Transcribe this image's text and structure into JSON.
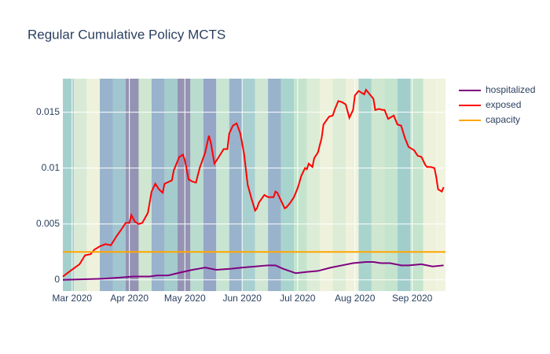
{
  "chart_data": {
    "type": "line",
    "title": "Regular Cumulative Policy MCTS",
    "xlim": [
      0,
      207
    ],
    "xticks": [
      {
        "value": 5,
        "label": "Mar 2020"
      },
      {
        "value": 36,
        "label": "Apr 2020"
      },
      {
        "value": 66,
        "label": "May 2020"
      },
      {
        "value": 97,
        "label": "Jun 2020"
      },
      {
        "value": 127,
        "label": "Jul 2020"
      },
      {
        "value": 158,
        "label": "Aug 2020"
      },
      {
        "value": 189,
        "label": "Sep 2020"
      }
    ],
    "ylim": [
      -0.001,
      0.018
    ],
    "yticks": [
      0,
      0.005,
      0.01,
      0.015
    ],
    "grid": true,
    "band_edges": [
      0,
      6,
      13,
      20,
      27,
      34,
      41,
      48,
      55,
      62,
      69,
      76,
      83,
      90,
      97,
      104,
      111,
      118,
      125,
      132,
      139,
      146,
      153,
      160,
      167,
      174,
      181,
      188,
      195,
      202,
      207
    ],
    "band_colors": [
      "#a3d0cd",
      "#d8ead6",
      "#eef2dc",
      "#98b3cb",
      "#a2c6d0",
      "#9593b3",
      "#cfe6d0",
      "#98b3cb",
      "#a4cccd",
      "#9593b3",
      "#b9dccf",
      "#96a6c6",
      "#c8e4d2",
      "#98b3cb",
      "#a8d0d0",
      "#cfe6d4",
      "#98b3cb",
      "#a8d4cd",
      "#c4e4cd",
      "#dcecd6",
      "#eef2dc",
      "#dcecd6",
      "#eef2dc",
      "#a8d4cd",
      "#cfe6d0",
      "#c4e4cd",
      "#a2cdcd",
      "#c4e4cd",
      "#eef2dc",
      "#f0f4df"
    ],
    "series": [
      {
        "name": "hospitalized",
        "color": "#800080",
        "x": [
          0,
          21,
          30,
          38,
          47,
          51,
          57,
          62,
          70,
          77,
          83,
          91,
          97,
          104,
          111,
          115,
          119,
          126,
          131,
          138,
          145,
          151,
          157,
          164,
          168,
          172,
          177,
          183,
          187,
          194,
          200,
          206
        ],
        "values": [
          0.0,
          0.0001,
          0.0002,
          0.0003,
          0.0003,
          0.0004,
          0.0004,
          0.0006,
          0.0009,
          0.0011,
          0.0009,
          0.001,
          0.0011,
          0.0012,
          0.0013,
          0.0013,
          0.001,
          0.0006,
          0.0007,
          0.0008,
          0.0011,
          0.0013,
          0.0015,
          0.0016,
          0.0016,
          0.0015,
          0.0015,
          0.0013,
          0.0013,
          0.0014,
          0.0012,
          0.0013
        ]
      },
      {
        "name": "exposed",
        "color": "#ff0000",
        "x": [
          0,
          4,
          9,
          12,
          15,
          17,
          18,
          20,
          23,
          26,
          29,
          32,
          34,
          36,
          37,
          39,
          41,
          43,
          46,
          48,
          50,
          52,
          54,
          55,
          59,
          60,
          63,
          65,
          66,
          68,
          70,
          72,
          74,
          77,
          79,
          80,
          82,
          84,
          87,
          89,
          90,
          92,
          94,
          96,
          98,
          100,
          102,
          104,
          105,
          106,
          109,
          111,
          114,
          115,
          116,
          118,
          120,
          121,
          123,
          125,
          126,
          127,
          129,
          131,
          132,
          133,
          135,
          136,
          138,
          140,
          141,
          144,
          146,
          147,
          149,
          151,
          152,
          153,
          155,
          157,
          158,
          160,
          161,
          163,
          164,
          166,
          168,
          169,
          171,
          173,
          174,
          176,
          179,
          181,
          183,
          185,
          187,
          190,
          192,
          194,
          196,
          197,
          199,
          201,
          202,
          203,
          205,
          206
        ],
        "values": [
          0.0003,
          0.0008,
          0.0014,
          0.0022,
          0.0023,
          0.0027,
          0.0028,
          0.003,
          0.0032,
          0.0031,
          0.0039,
          0.0046,
          0.0051,
          0.0051,
          0.0058,
          0.0052,
          0.005,
          0.0051,
          0.006,
          0.0079,
          0.0086,
          0.0081,
          0.0078,
          0.0086,
          0.0089,
          0.0098,
          0.011,
          0.0112,
          0.0107,
          0.009,
          0.0088,
          0.0087,
          0.01,
          0.0114,
          0.0129,
          0.0123,
          0.0104,
          0.0109,
          0.0117,
          0.0117,
          0.0131,
          0.0138,
          0.014,
          0.0131,
          0.0113,
          0.0085,
          0.0073,
          0.0062,
          0.0064,
          0.0069,
          0.0076,
          0.0074,
          0.0074,
          0.0079,
          0.0078,
          0.0071,
          0.0064,
          0.0065,
          0.0069,
          0.0074,
          0.0078,
          0.0082,
          0.0093,
          0.01,
          0.0099,
          0.0104,
          0.0101,
          0.0109,
          0.0114,
          0.0127,
          0.0139,
          0.0146,
          0.0147,
          0.0152,
          0.016,
          0.0159,
          0.0158,
          0.0157,
          0.0145,
          0.0152,
          0.0165,
          0.0169,
          0.0168,
          0.0166,
          0.017,
          0.0166,
          0.0162,
          0.0152,
          0.0153,
          0.0152,
          0.0152,
          0.0144,
          0.0147,
          0.0139,
          0.0138,
          0.0127,
          0.0119,
          0.0116,
          0.0111,
          0.011,
          0.0103,
          0.0101,
          0.0101,
          0.01,
          0.0092,
          0.0081,
          0.0079,
          0.0083
        ]
      },
      {
        "name": "capacity",
        "color": "#ffa500",
        "x": [
          0,
          207
        ],
        "values": [
          0.0025,
          0.0025
        ]
      }
    ]
  }
}
